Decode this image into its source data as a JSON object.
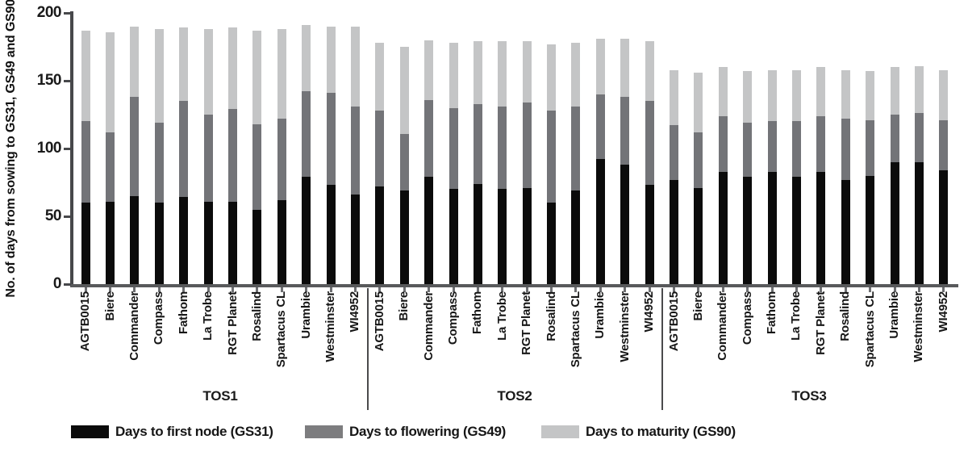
{
  "chart_data": {
    "type": "bar",
    "stacked": true,
    "title": "",
    "xlabel": "",
    "ylabel": "No. of days from sowing to GS31, GS49 and GS90",
    "ylim": [
      0,
      200
    ],
    "yticks": [
      0,
      50,
      100,
      150,
      200
    ],
    "grid": false,
    "legend_position": "bottom",
    "values_note": "each bar = cumulative days to [GS31, GS49, GS90]",
    "colors": {
      "gs31": "#0b0b0b",
      "gs49": "#737478",
      "gs90": "#c4c5c6"
    },
    "legend": [
      {
        "label": "Days to first node (GS31)",
        "color": "#0b0b0b"
      },
      {
        "label": "Days to flowering (GS49)",
        "color": "#7d7d7f"
      },
      {
        "label": "Days to maturity (GS90)",
        "color": "#c4c5c6"
      }
    ],
    "categories": [
      "AGTB0015",
      "Biere",
      "Commander",
      "Compass",
      "Fathom",
      "La Trobe",
      "RGT Planet",
      "Rosalind",
      "Spartacus CL",
      "Urambie",
      "Westminster",
      "WI4952"
    ],
    "groups": [
      {
        "label": "TOS1",
        "values": [
          [
            60,
            120,
            187
          ],
          [
            61,
            112,
            186
          ],
          [
            65,
            138,
            190
          ],
          [
            60,
            119,
            188
          ],
          [
            64,
            135,
            189
          ],
          [
            61,
            125,
            188
          ],
          [
            61,
            129,
            189
          ],
          [
            55,
            118,
            187
          ],
          [
            62,
            122,
            188
          ],
          [
            79,
            142,
            191
          ],
          [
            73,
            141,
            190
          ],
          [
            66,
            131,
            190
          ]
        ]
      },
      {
        "label": "TOS2",
        "values": [
          [
            72,
            128,
            178
          ],
          [
            69,
            111,
            175
          ],
          [
            79,
            136,
            180
          ],
          [
            70,
            130,
            178
          ],
          [
            74,
            133,
            179
          ],
          [
            70,
            131,
            179
          ],
          [
            71,
            134,
            179
          ],
          [
            60,
            128,
            177
          ],
          [
            69,
            131,
            178
          ],
          [
            92,
            140,
            181
          ],
          [
            88,
            138,
            181
          ],
          [
            73,
            135,
            179
          ]
        ]
      },
      {
        "label": "TOS3",
        "values": [
          [
            77,
            117,
            158
          ],
          [
            71,
            112,
            156
          ],
          [
            83,
            124,
            160
          ],
          [
            79,
            119,
            157
          ],
          [
            83,
            120,
            158
          ],
          [
            79,
            120,
            158
          ],
          [
            83,
            124,
            160
          ],
          [
            77,
            122,
            158
          ],
          [
            80,
            121,
            157
          ],
          [
            90,
            125,
            160
          ],
          [
            90,
            126,
            161
          ],
          [
            84,
            121,
            158
          ]
        ]
      }
    ]
  }
}
